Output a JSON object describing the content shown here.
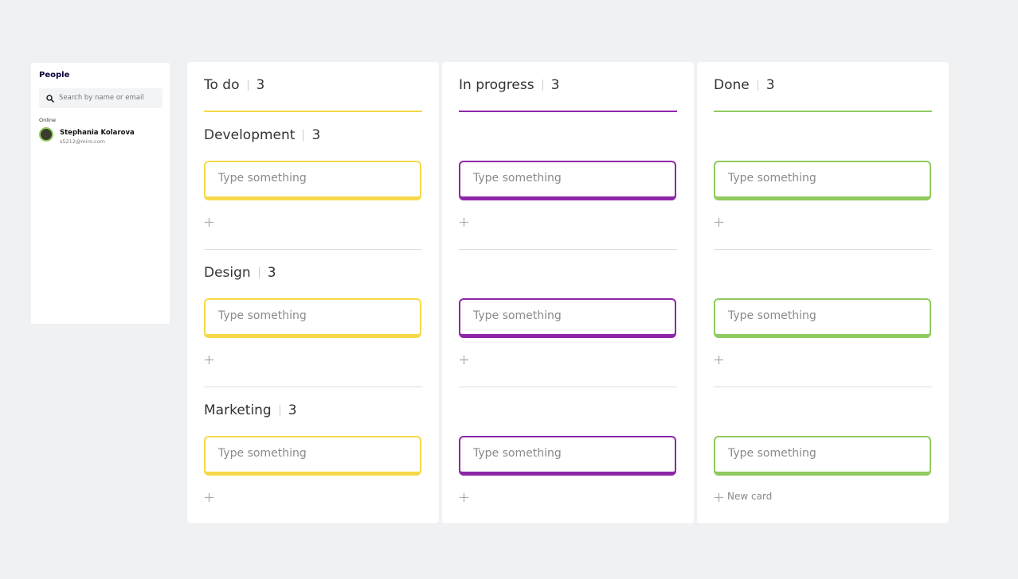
{
  "people": {
    "title": "People",
    "search_placeholder": "Search by name or email",
    "status": "Online",
    "users": [
      {
        "name": "Stephania Kolarova",
        "email": "s5212@miro.com"
      }
    ]
  },
  "board": {
    "columns": [
      {
        "title": "To do",
        "count": 3,
        "color": "#f5d949"
      },
      {
        "title": "In progress",
        "count": 3,
        "color": "#8d26a8"
      },
      {
        "title": "Done",
        "count": 3,
        "color": "#8fcb5f"
      }
    ],
    "groups": [
      {
        "title": "Development",
        "count": 3
      },
      {
        "title": "Design",
        "count": 3
      },
      {
        "title": "Marketing",
        "count": 3
      }
    ],
    "cards": [
      [
        "Type something",
        "Type something",
        "Type something"
      ],
      [
        "Type something",
        "Type something",
        "Type something"
      ],
      [
        "Type something",
        "Type something",
        "Type something"
      ]
    ],
    "new_card": "New card"
  }
}
